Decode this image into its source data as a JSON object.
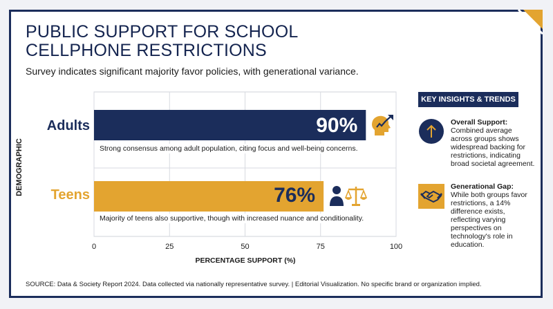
{
  "header": {
    "title": "PUBLIC SUPPORT FOR SCHOOL CELLPHONE RESTRICTIONS",
    "subtitle": "Survey indicates significant majority favor policies, with generational variance."
  },
  "chart_data": {
    "type": "bar",
    "orientation": "horizontal",
    "categories": [
      "Adults",
      "Teens"
    ],
    "values": [
      90,
      76
    ],
    "value_labels": [
      "90%",
      "76%"
    ],
    "bar_colors": [
      "#1b2d5b",
      "#e3a430"
    ],
    "captions": [
      "Strong consensus among adult population, citing focus and well-being concerns.",
      "Majority of teens also supportive, though with increased nuance and conditionality."
    ],
    "xlabel": "PERCENTAGE SUPPORT (%)",
    "ylabel": "DEMOGRAPHIC",
    "xlim": [
      0,
      100
    ],
    "xticks": [
      0,
      25,
      50,
      75,
      100
    ],
    "grid": true
  },
  "sidebar": {
    "heading": "KEY INSIGHTS & TRENDS",
    "insights": [
      {
        "icon": "arrow-up-icon",
        "title": "Overall Support:",
        "text": "Combined average across groups shows widespread backing for restrictions, indicating broad societal agreement."
      },
      {
        "icon": "handshake-icon",
        "title": "Generational Gap:",
        "text": "While both groups favor restrictions, a 14% difference exists, reflecting varying perspectives on technology's role in education."
      }
    ]
  },
  "footer": {
    "source": "SOURCE: Data & Society Report 2024. Data collected via nationally representative survey. | Editorial Visualization. No specific brand or organization implied."
  },
  "colors": {
    "navy": "#1b2d5b",
    "gold": "#e3a430"
  }
}
